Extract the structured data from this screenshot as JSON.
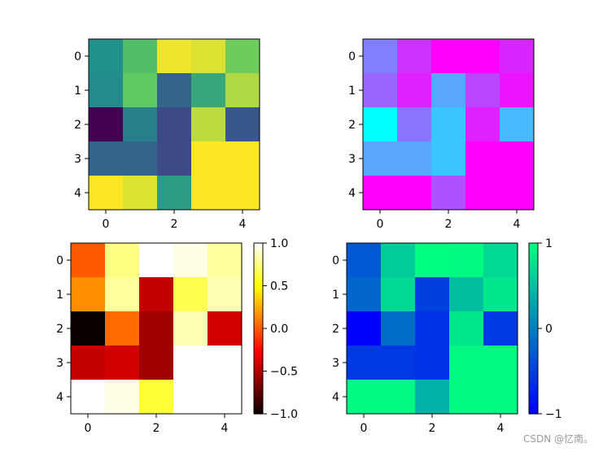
{
  "chart_data": [
    {
      "type": "heatmap",
      "colormap": "viridis",
      "values": [
        [
          0.0,
          0.4,
          0.95,
          0.9,
          0.55
        ],
        [
          -0.05,
          0.5,
          -0.35,
          0.2,
          0.75
        ],
        [
          -1.0,
          -0.15,
          -0.55,
          0.8,
          -0.45
        ],
        [
          -0.35,
          -0.35,
          -0.55,
          1.0,
          1.0
        ],
        [
          1.0,
          0.9,
          0.1,
          1.0,
          1.0
        ]
      ],
      "vmin": -1,
      "vmax": 1,
      "x_ticks": [
        "0",
        "2",
        "4"
      ],
      "y_ticks": [
        "0",
        "1",
        "2",
        "3",
        "4"
      ],
      "colorbar": false
    },
    {
      "type": "heatmap",
      "colormap": "cool",
      "values": [
        [
          0.0,
          0.6,
          1.0,
          1.0,
          0.7
        ],
        [
          0.2,
          0.75,
          -0.3,
          0.45,
          0.85
        ],
        [
          -1.0,
          0.1,
          -0.55,
          0.75,
          -0.45
        ],
        [
          -0.3,
          -0.3,
          -0.55,
          1.0,
          1.0
        ],
        [
          1.0,
          1.0,
          0.35,
          1.0,
          1.0
        ]
      ],
      "vmin": -1,
      "vmax": 1,
      "x_ticks": [
        "0",
        "2",
        "4"
      ],
      "y_ticks": [
        "0",
        "1",
        "2",
        "3",
        "4"
      ],
      "colorbar": false
    },
    {
      "type": "heatmap",
      "colormap": "hot",
      "values": [
        [
          0.0,
          0.75,
          1.0,
          0.95,
          0.8
        ],
        [
          0.15,
          0.8,
          -0.45,
          0.65,
          0.85
        ],
        [
          -1.0,
          0.05,
          -0.55,
          0.85,
          -0.4
        ],
        [
          -0.45,
          -0.4,
          -0.55,
          1.0,
          1.0
        ],
        [
          1.0,
          0.95,
          0.6,
          1.0,
          1.0
        ]
      ],
      "vmin": -1,
      "vmax": 1,
      "x_ticks": [
        "0",
        "2",
        "4"
      ],
      "y_ticks": [
        "0",
        "1",
        "2",
        "3",
        "4"
      ],
      "colorbar": true,
      "colorbar_ticks": [
        "1.0",
        "0.5",
        "0.0",
        "−0.5",
        "−1.0"
      ],
      "colorbar_tick_values": [
        1.0,
        0.5,
        0.0,
        -0.5,
        -1.0
      ]
    },
    {
      "type": "heatmap",
      "colormap": "winter",
      "values": [
        [
          -0.3,
          0.6,
          1.0,
          0.95,
          0.7
        ],
        [
          -0.2,
          0.7,
          -0.5,
          0.5,
          0.8
        ],
        [
          -1.0,
          -0.15,
          -0.6,
          0.8,
          -0.55
        ],
        [
          -0.55,
          -0.55,
          -0.6,
          0.95,
          0.95
        ],
        [
          0.95,
          0.95,
          0.4,
          0.95,
          0.95
        ]
      ],
      "vmin": -1,
      "vmax": 1,
      "x_ticks": [
        "0",
        "2",
        "4"
      ],
      "y_ticks": [
        "0",
        "1",
        "2",
        "3",
        "4"
      ],
      "colorbar": true,
      "colorbar_ticks": [
        "1",
        "0",
        "−1"
      ],
      "colorbar_tick_values": [
        1,
        0,
        -1
      ]
    }
  ],
  "watermark": "CSDN @忆南。"
}
